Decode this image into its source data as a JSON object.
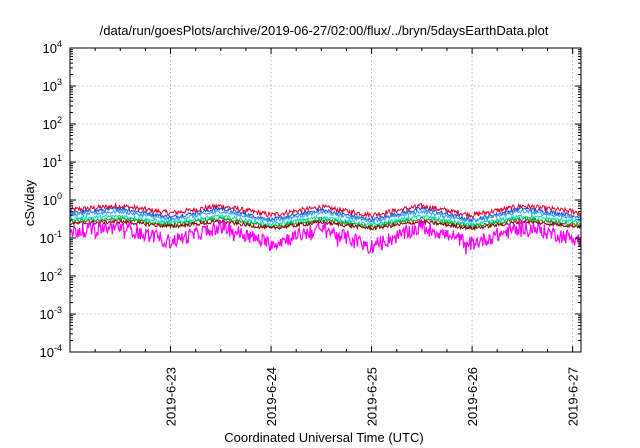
{
  "chart_data": {
    "type": "line",
    "title": "/data/run/goesPlots/archive/2019-06-27/02:00/flux/../bryn/5daysEarthData.plot",
    "xlabel": "Coordinated Universal Time (UTC)",
    "ylabel": "cSv/day",
    "y_scale": "log",
    "ylim": [
      0.0001,
      10000
    ],
    "y_ticks": [
      {
        "base": "10",
        "exp": "4"
      },
      {
        "base": "10",
        "exp": "3"
      },
      {
        "base": "10",
        "exp": "2"
      },
      {
        "base": "10",
        "exp": "1"
      },
      {
        "base": "10",
        "exp": "0"
      },
      {
        "base": "10",
        "exp": "-1"
      },
      {
        "base": "10",
        "exp": "-2"
      },
      {
        "base": "10",
        "exp": "-3"
      },
      {
        "base": "10",
        "exp": "-4"
      }
    ],
    "xlim": [
      "2019-06-22T00:00",
      "2019-06-27T02:00"
    ],
    "x_ticks": [
      "2019-6-23",
      "2019-6-24",
      "2019-6-25",
      "2019-6-26",
      "2019-6-27"
    ],
    "grid": true,
    "series": [
      {
        "color": "#e8002a",
        "mean": 0.55,
        "x": [
          "2019-06-22T00:00",
          "2019-06-22T12:00",
          "2019-06-23T00:00",
          "2019-06-23T12:00",
          "2019-06-24T00:00",
          "2019-06-24T12:00",
          "2019-06-25T00:00",
          "2019-06-25T12:00",
          "2019-06-26T00:00",
          "2019-06-26T12:00",
          "2019-06-27T00:00",
          "2019-06-27T02:00"
        ],
        "values": [
          0.55,
          0.7,
          0.45,
          0.7,
          0.4,
          0.65,
          0.4,
          0.7,
          0.4,
          0.7,
          0.5,
          0.45
        ]
      },
      {
        "color": "#1a4fe0",
        "mean": 0.45,
        "x": [
          "2019-06-22T00:00",
          "2019-06-22T12:00",
          "2019-06-23T00:00",
          "2019-06-23T12:00",
          "2019-06-24T00:00",
          "2019-06-24T12:00",
          "2019-06-25T00:00",
          "2019-06-25T12:00",
          "2019-06-26T00:00",
          "2019-06-26T12:00",
          "2019-06-27T00:00",
          "2019-06-27T02:00"
        ],
        "values": [
          0.45,
          0.6,
          0.35,
          0.6,
          0.3,
          0.55,
          0.3,
          0.6,
          0.3,
          0.6,
          0.4,
          0.35
        ]
      },
      {
        "color": "#3ba0e6",
        "mean": 0.4,
        "x": [
          "2019-06-22T00:00",
          "2019-06-22T12:00",
          "2019-06-23T00:00",
          "2019-06-23T12:00",
          "2019-06-24T00:00",
          "2019-06-24T12:00",
          "2019-06-25T00:00",
          "2019-06-25T12:00",
          "2019-06-26T00:00",
          "2019-06-26T12:00",
          "2019-06-27T00:00",
          "2019-06-27T02:00"
        ],
        "values": [
          0.4,
          0.5,
          0.3,
          0.5,
          0.28,
          0.48,
          0.28,
          0.5,
          0.28,
          0.5,
          0.35,
          0.3
        ]
      },
      {
        "color": "#00e0d0",
        "mean": 0.32,
        "x": [
          "2019-06-22T00:00",
          "2019-06-22T12:00",
          "2019-06-23T00:00",
          "2019-06-23T12:00",
          "2019-06-24T00:00",
          "2019-06-24T12:00",
          "2019-06-25T00:00",
          "2019-06-25T12:00",
          "2019-06-26T00:00",
          "2019-06-26T12:00",
          "2019-06-27T00:00",
          "2019-06-27T02:00"
        ],
        "values": [
          0.32,
          0.38,
          0.25,
          0.38,
          0.22,
          0.36,
          0.22,
          0.38,
          0.22,
          0.38,
          0.28,
          0.25
        ]
      },
      {
        "color": "#1aa01a",
        "mean": 0.27,
        "x": [
          "2019-06-22T00:00",
          "2019-06-22T12:00",
          "2019-06-23T00:00",
          "2019-06-23T12:00",
          "2019-06-24T00:00",
          "2019-06-24T12:00",
          "2019-06-25T00:00",
          "2019-06-25T12:00",
          "2019-06-26T00:00",
          "2019-06-26T12:00",
          "2019-06-27T00:00",
          "2019-06-27T02:00"
        ],
        "values": [
          0.27,
          0.32,
          0.22,
          0.32,
          0.2,
          0.3,
          0.2,
          0.32,
          0.2,
          0.32,
          0.24,
          0.22
        ]
      },
      {
        "color": "#8b0000",
        "mean": 0.24,
        "x": [
          "2019-06-22T00:00",
          "2019-06-22T12:00",
          "2019-06-23T00:00",
          "2019-06-23T12:00",
          "2019-06-24T00:00",
          "2019-06-24T12:00",
          "2019-06-25T00:00",
          "2019-06-25T12:00",
          "2019-06-26T00:00",
          "2019-06-26T12:00",
          "2019-06-27T00:00",
          "2019-06-27T02:00"
        ],
        "values": [
          0.24,
          0.27,
          0.2,
          0.27,
          0.18,
          0.26,
          0.18,
          0.27,
          0.18,
          0.27,
          0.21,
          0.2
        ]
      },
      {
        "color": "#ff00ff",
        "mean": 0.15,
        "x": [
          "2019-06-22T00:00",
          "2019-06-22T12:00",
          "2019-06-23T00:00",
          "2019-06-23T12:00",
          "2019-06-24T00:00",
          "2019-06-24T12:00",
          "2019-06-25T00:00",
          "2019-06-25T12:00",
          "2019-06-26T00:00",
          "2019-06-26T12:00",
          "2019-06-27T00:00",
          "2019-06-27T02:00"
        ],
        "values": [
          0.15,
          0.2,
          0.08,
          0.2,
          0.07,
          0.18,
          0.06,
          0.2,
          0.07,
          0.2,
          0.1,
          0.09
        ]
      }
    ]
  }
}
